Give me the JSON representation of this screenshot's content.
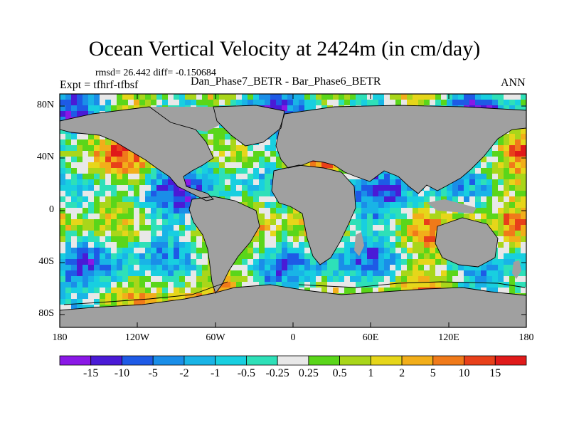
{
  "title": "Ocean Vertical Velocity at 2424m (in cm/day)",
  "stats_text": "rmsd= 26.442 diff= -0.150684",
  "expt_text": "Expt = tfhrf-tfbsf",
  "diff_label": "Dan_Phase7_BETR - Bar_Phase6_BETR",
  "season": "ANN",
  "chart_data": {
    "type": "heatmap",
    "title": "Ocean Vertical Velocity at 2424m (in cm/day)",
    "projection": "global lat-lon map, land masked in gray",
    "lat_ticks": [
      "80N",
      "40N",
      "0",
      "40S",
      "80S"
    ],
    "lon_ticks": [
      "180",
      "120W",
      "60W",
      "0",
      "60E",
      "120E",
      "180"
    ],
    "xlim": [
      -180,
      180
    ],
    "ylim": [
      -90,
      90
    ],
    "colorbar": {
      "levels": [
        "-15",
        "-10",
        "-5",
        "-2",
        "-1",
        "-0.5",
        "-0.25",
        "0.25",
        "0.5",
        "1",
        "2",
        "5",
        "10",
        "15"
      ],
      "colors": [
        "#8a18e6",
        "#4a1ad6",
        "#1e5ae6",
        "#1a8ee8",
        "#19b4e6",
        "#18cfe0",
        "#2ee0b8",
        "#e8e8e8",
        "#5ad61a",
        "#a9d61a",
        "#e6d61a",
        "#f2ae1a",
        "#f07a1a",
        "#e8401a",
        "#e01a1a"
      ]
    }
  }
}
